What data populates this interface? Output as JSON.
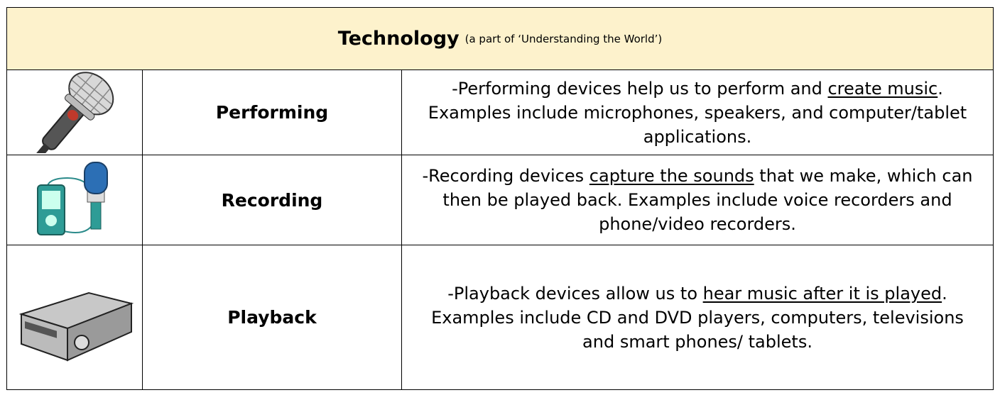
{
  "header": {
    "title": "Technology",
    "subtitle": "(a part of ‘Understanding the World’)"
  },
  "rows": [
    {
      "label": "Performing",
      "description": {
        "before": "-Performing devices help us to perform and ",
        "underlined": "create music",
        "after": ". Examples include microphones, speakers, and computer/tablet applications."
      }
    },
    {
      "label": "Recording",
      "description": {
        "before": "-Recording devices ",
        "underlined": "capture the sounds",
        "after": " that we make, which can then be played back. Examples include voice recorders and phone/video recorders."
      }
    },
    {
      "label": "Playback",
      "description": {
        "before": "-Playback devices allow us to ",
        "underlined": "hear music after it is played",
        "after": ". Examples include CD and DVD players, computers, televisions and smart phones/ tablets."
      }
    }
  ]
}
